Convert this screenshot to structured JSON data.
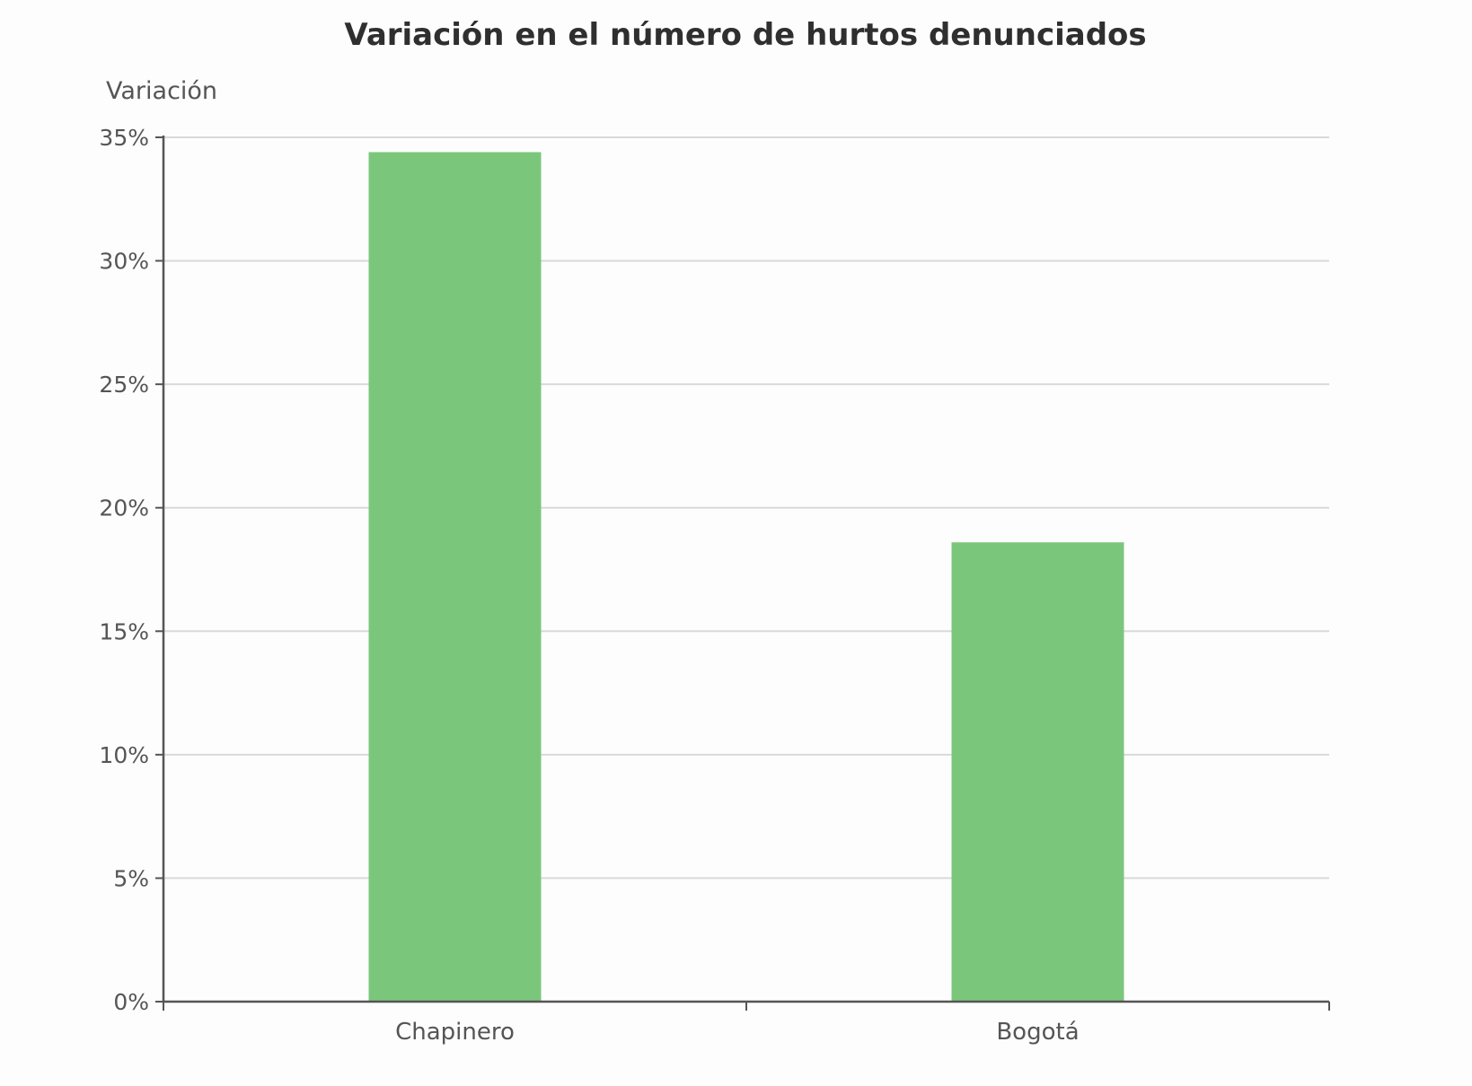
{
  "chart_data": {
    "type": "bar",
    "title": "Variación en el número de hurtos denunciados",
    "xlabel": "",
    "ylabel": "Variación",
    "categories": [
      "Chapinero",
      "Bogotá"
    ],
    "values": [
      34.4,
      18.6
    ],
    "ylim": [
      0,
      35
    ],
    "yticks": [
      0,
      5,
      10,
      15,
      20,
      25,
      30,
      35
    ],
    "ytick_labels": [
      "0%",
      "5%",
      "10%",
      "15%",
      "20%",
      "25%",
      "30%",
      "35%"
    ],
    "grid": true,
    "bar_color": "#7ac77c"
  }
}
